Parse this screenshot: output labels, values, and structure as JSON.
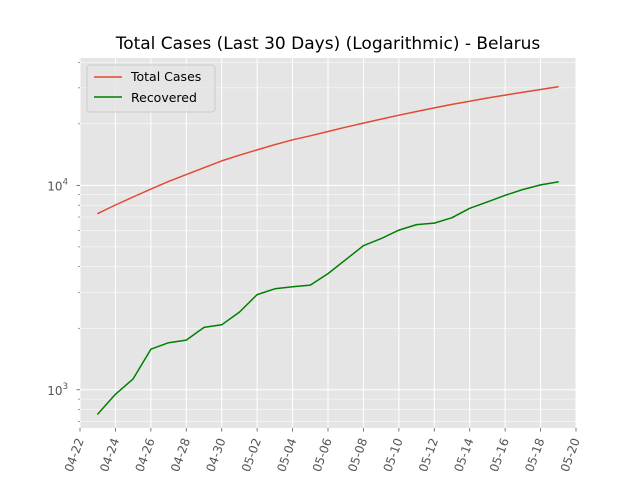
{
  "chart_data": {
    "type": "line",
    "title": "Total Cases (Last 30 Days) (Logarithmic) - Belarus",
    "xlabel": "",
    "ylabel": "",
    "x_scale": "date",
    "y_scale": "log",
    "xlim": [
      "2020-04-22",
      "2020-05-20"
    ],
    "ylim": [
      650,
      42000
    ],
    "x_ticks": [
      "04-22",
      "04-24",
      "04-26",
      "04-28",
      "04-30",
      "05-02",
      "05-04",
      "05-06",
      "05-08",
      "05-10",
      "05-12",
      "05-14",
      "05-16",
      "05-18",
      "05-20"
    ],
    "y_ticks": [
      {
        "value": 1000,
        "base": "10",
        "exp": "3"
      },
      {
        "value": 10000,
        "base": "10",
        "exp": "4"
      }
    ],
    "grid": true,
    "legend_position": "top-left",
    "dates": [
      "2020-04-23",
      "2020-04-24",
      "2020-04-25",
      "2020-04-26",
      "2020-04-27",
      "2020-04-28",
      "2020-04-29",
      "2020-04-30",
      "2020-05-01",
      "2020-05-02",
      "2020-05-03",
      "2020-05-04",
      "2020-05-05",
      "2020-05-06",
      "2020-05-07",
      "2020-05-08",
      "2020-05-09",
      "2020-05-10",
      "2020-05-11",
      "2020-05-12",
      "2020-05-13",
      "2020-05-14",
      "2020-05-15",
      "2020-05-16",
      "2020-05-17",
      "2020-05-18",
      "2020-05-19"
    ],
    "series": [
      {
        "name": "Total Cases",
        "color": "#e24a33",
        "values": [
          7280,
          8020,
          8770,
          9590,
          10460,
          11290,
          12210,
          13180,
          14050,
          14920,
          15830,
          16710,
          17490,
          18350,
          19260,
          20170,
          21100,
          22050,
          23000,
          23950,
          24900,
          25800,
          26750,
          27650,
          28550,
          29450,
          30400
        ]
      },
      {
        "name": "Recovered",
        "color": "#008000",
        "values": [
          760,
          950,
          1130,
          1580,
          1700,
          1750,
          2020,
          2080,
          2400,
          2920,
          3120,
          3190,
          3250,
          3700,
          4330,
          5070,
          5490,
          6040,
          6430,
          6540,
          6950,
          7720,
          8300,
          8940,
          9550,
          10050,
          10400
        ]
      }
    ]
  }
}
